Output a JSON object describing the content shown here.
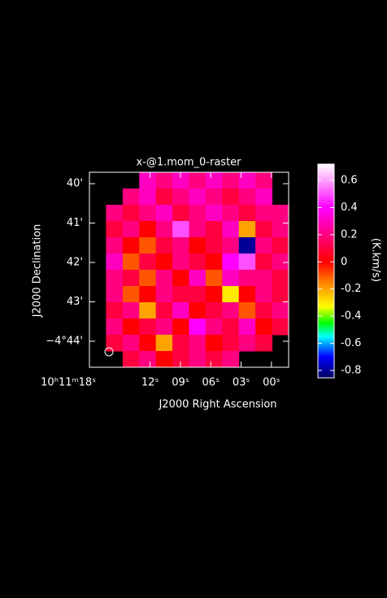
{
  "chart_data": {
    "type": "raster",
    "title": "x-@1.mom_0-raster",
    "xlabel": "J2000 Right Ascension",
    "ylabel": "J2000 Declination",
    "colorbar_label": "(K.km/s)",
    "xlim": [
      18,
      -1.7
    ],
    "xticks": [
      {
        "value": 18,
        "label": "10ʰ11ᵐ18ˢ"
      },
      {
        "value": 12,
        "label": "12ˢ"
      },
      {
        "value": 9,
        "label": "09ˢ"
      },
      {
        "value": 6,
        "label": "06ˢ"
      },
      {
        "value": 3,
        "label": "03ˢ"
      },
      {
        "value": 0,
        "label": "00ˢ"
      }
    ],
    "ylim": [
      39.71,
      44.66
    ],
    "yticks": [
      {
        "value": 40,
        "label": "40'"
      },
      {
        "value": 41,
        "label": "41'"
      },
      {
        "value": 42,
        "label": "42'"
      },
      {
        "value": 43,
        "label": "43'"
      },
      {
        "value": 44,
        "label": "−4°44'"
      }
    ],
    "clim": [
      -0.854,
      0.72
    ],
    "cticks": [
      0.6,
      0.4,
      0.2,
      0,
      -0.2,
      -0.4,
      -0.6,
      -0.8
    ],
    "colormap": [
      [
        -0.854,
        "#000060"
      ],
      [
        -0.7,
        "#0000ff"
      ],
      [
        -0.55,
        "#00ffff"
      ],
      [
        -0.45,
        "#00ff00"
      ],
      [
        -0.33,
        "#ffff00"
      ],
      [
        -0.15,
        "#ff8000"
      ],
      [
        0,
        "#ff0000"
      ],
      [
        0.2,
        "#ff0080"
      ],
      [
        0.4,
        "#ff00ff"
      ],
      [
        0.6,
        "#ffa0ff"
      ],
      [
        0.72,
        "#ffffff"
      ]
    ],
    "z": [
      [
        null,
        null,
        null,
        0.3,
        0.2,
        0.3,
        0.2,
        0.3,
        0.2,
        0.3,
        0.2,
        null
      ],
      [
        null,
        null,
        0.2,
        0.3,
        0.1,
        0.2,
        0.3,
        0.2,
        0.1,
        0.2,
        0.3,
        null
      ],
      [
        null,
        0.2,
        0.1,
        0.2,
        0.3,
        0.1,
        0.2,
        0.3,
        0.2,
        0.1,
        0.2,
        0.2
      ],
      [
        null,
        0.1,
        0.2,
        0.0,
        0.2,
        0.5,
        0.2,
        0.1,
        0.3,
        -0.2,
        0.1,
        0.2
      ],
      [
        null,
        0.2,
        0.0,
        -0.1,
        0.1,
        0.2,
        0.0,
        0.1,
        0.2,
        -0.8,
        0.2,
        0.1
      ],
      [
        null,
        0.3,
        -0.1,
        0.1,
        0.0,
        0.2,
        0.1,
        0.0,
        0.4,
        0.5,
        0.1,
        0.2
      ],
      [
        null,
        0.2,
        0.1,
        -0.1,
        0.2,
        0.0,
        0.3,
        -0.1,
        0.3,
        0.2,
        0.2,
        0.1
      ],
      [
        null,
        0.2,
        -0.1,
        0.0,
        0.2,
        0.1,
        0.1,
        0.0,
        -0.3,
        0.0,
        0.2,
        0.1
      ],
      [
        null,
        0.1,
        0.2,
        -0.2,
        0.1,
        0.3,
        0.0,
        0.1,
        0.2,
        -0.1,
        0.1,
        0.2
      ],
      [
        null,
        0.2,
        0.0,
        0.1,
        0.2,
        0.0,
        0.4,
        0.2,
        0.1,
        0.3,
        0.0,
        0.1
      ],
      [
        null,
        0.1,
        0.2,
        0.0,
        -0.2,
        0.1,
        0.2,
        0.0,
        0.1,
        0.2,
        0.1,
        null
      ],
      [
        null,
        null,
        0.1,
        0.2,
        0.0,
        0.1,
        0.2,
        0.1,
        0.2,
        null,
        null,
        null
      ]
    ]
  }
}
